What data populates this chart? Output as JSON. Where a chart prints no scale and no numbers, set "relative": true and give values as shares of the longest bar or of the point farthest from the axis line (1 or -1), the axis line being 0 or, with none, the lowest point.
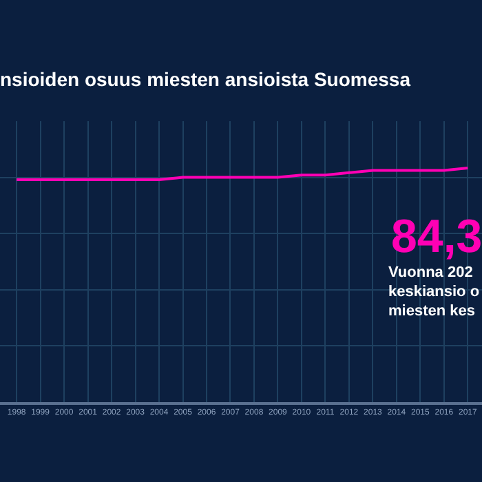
{
  "chart_data": {
    "type": "line",
    "title": "nsioiden osuus miesten ansioista Suomessa",
    "relative": true,
    "grid": true,
    "marker": "none",
    "line_style": "solid",
    "categories": [
      "1998",
      "1999",
      "2000",
      "2001",
      "2002",
      "2003",
      "2004",
      "2005",
      "2006",
      "2007",
      "2008",
      "2009",
      "2010",
      "2011",
      "2012",
      "2013",
      "2014",
      "2015",
      "2016",
      "2017"
    ],
    "series": [
      {
        "color": "#ff00b4",
        "values": [
          0.95,
          0.95,
          0.95,
          0.95,
          0.95,
          0.95,
          0.95,
          0.96,
          0.96,
          0.96,
          0.96,
          0.96,
          0.97,
          0.97,
          0.98,
          0.99,
          0.99,
          0.99,
          0.99,
          1
        ]
      }
    ],
    "annotations": [
      "84,3",
      "Vuonna 202",
      "keskiansio o",
      "miesten kes"
    ]
  }
}
